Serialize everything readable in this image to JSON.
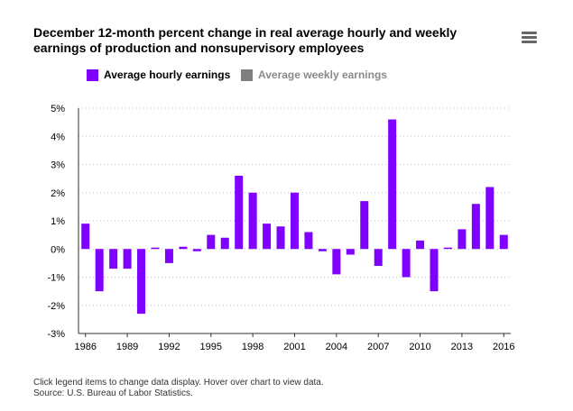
{
  "title": "December 12-month percent change in real average hourly and weekly earnings of production and nonsupervisory employees",
  "menu_icon": "hamburger-menu-icon",
  "legend": [
    {
      "label": "Average hourly earnings",
      "color": "#8000ff",
      "active": true
    },
    {
      "label": "Average weekly earnings",
      "color": "#808080",
      "active": false
    }
  ],
  "footnote": {
    "line1": "Click legend items to change data display. Hover over chart to view data.",
    "line2": "Source: U.S. Bureau of Labor Statistics."
  },
  "chart_data": {
    "type": "bar",
    "categories": [
      "1986",
      "1987",
      "1988",
      "1989",
      "1990",
      "1991",
      "1992",
      "1993",
      "1994",
      "1995",
      "1996",
      "1997",
      "1998",
      "1999",
      "2000",
      "2001",
      "2002",
      "2003",
      "2004",
      "2005",
      "2006",
      "2007",
      "2008",
      "2009",
      "2010",
      "2011",
      "2012",
      "2013",
      "2014",
      "2015",
      "2016"
    ],
    "series": [
      {
        "name": "Average hourly earnings",
        "color": "#8000ff",
        "values": [
          0.9,
          -1.5,
          -0.7,
          -0.7,
          -2.3,
          0.05,
          -0.5,
          0.08,
          -0.08,
          0.5,
          0.4,
          2.6,
          2.0,
          0.9,
          0.8,
          2.0,
          0.6,
          -0.08,
          -0.9,
          -0.2,
          1.7,
          -0.6,
          4.6,
          -1.0,
          0.3,
          -1.5,
          0.05,
          0.7,
          1.6,
          2.2,
          0.5
        ]
      }
    ],
    "x_tick_labels": [
      "1986",
      "1989",
      "1992",
      "1995",
      "1998",
      "2001",
      "2004",
      "2007",
      "2010",
      "2013",
      "2016"
    ],
    "y_ticks": [
      -3,
      -2,
      -1,
      0,
      1,
      2,
      3,
      4,
      5
    ],
    "y_tick_labels": [
      "-3%",
      "-2%",
      "-1%",
      "0%",
      "1%",
      "2%",
      "3%",
      "4%",
      "5%"
    ],
    "ylim": [
      -3,
      5
    ],
    "grid": true,
    "legend_position": "top-left",
    "xlabel": "",
    "ylabel": ""
  }
}
